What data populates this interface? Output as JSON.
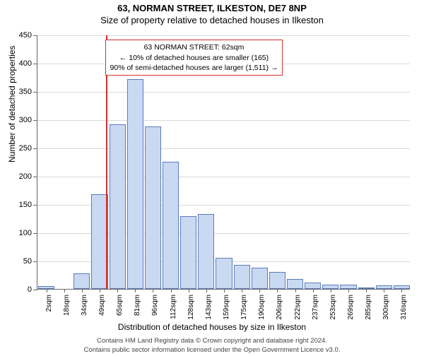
{
  "title": {
    "line1": "63, NORMAN STREET, ILKESTON, DE7 8NP",
    "line2": "Size of property relative to detached houses in Ilkeston"
  },
  "yaxis": {
    "label": "Number of detached properties",
    "min": 0,
    "max": 450,
    "step": 50
  },
  "xaxis": {
    "label": "Distribution of detached houses by size in Ilkeston",
    "categories": [
      "2sqm",
      "18sqm",
      "34sqm",
      "49sqm",
      "65sqm",
      "81sqm",
      "96sqm",
      "112sqm",
      "128sqm",
      "143sqm",
      "159sqm",
      "175sqm",
      "190sqm",
      "206sqm",
      "222sqm",
      "237sqm",
      "253sqm",
      "269sqm",
      "285sqm",
      "300sqm",
      "316sqm"
    ]
  },
  "bars": {
    "values": [
      5,
      0,
      28,
      167,
      291,
      371,
      288,
      225,
      129,
      133,
      55,
      42,
      38,
      30,
      18,
      11,
      7,
      7,
      2,
      6,
      6
    ],
    "fill": "#c9d9f2",
    "stroke": "#5b7bb8",
    "width_frac": 0.92
  },
  "marker": {
    "bin_index": 3,
    "position_in_bin": 0.85,
    "color": "#d03030"
  },
  "annotation": {
    "lines": [
      "63 NORMAN STREET: 62sqm",
      "← 10% of detached houses are smaller (165)",
      "90% of semi-detached houses are larger (1,511) →"
    ],
    "border": "#d03030",
    "left_bin": 3.8,
    "top_value": 442
  },
  "footer": {
    "line1": "Contains HM Land Registry data © Crown copyright and database right 2024.",
    "line2": "Contains public sector information licensed under the Open Government Licence v3.0."
  },
  "style": {
    "background": "#ffffff",
    "grid_color": "#666666",
    "grid_opacity": 0.25
  }
}
